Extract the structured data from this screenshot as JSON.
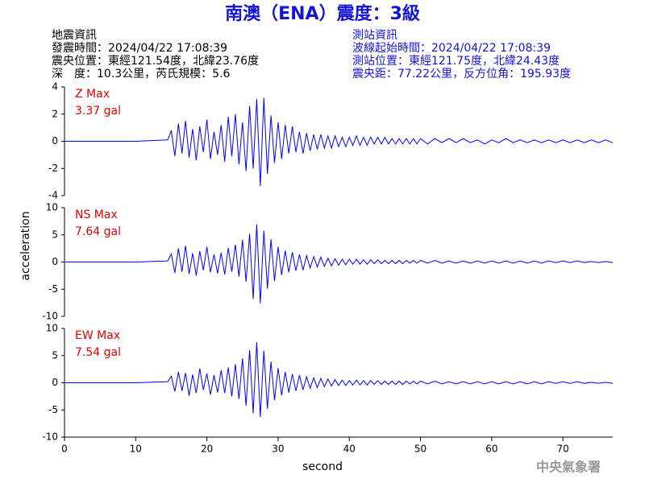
{
  "header": {
    "title": "南澳（ENA）震度：3級",
    "left": [
      "地震資訊",
      "發震時間：2024/04/22 17:08:39",
      "震央位置：東經121.54度，北緯23.76度",
      "深　度：10.3公里，芮氏規模：5.6"
    ],
    "right": [
      "測站資訊",
      "波線起始時間：2024/04/22 17:08:39",
      "測站位置：東經121.75度，北緯24.43度",
      "震央距：77.22公里，反方位角：195.93度"
    ],
    "agency": "中央氣象署"
  },
  "chart_data": [
    {
      "type": "line",
      "annotations": [
        "Z Max",
        "3.37 gal"
      ],
      "annotation_color": "#e00000",
      "color": "#0000ff",
      "xlim": [
        0,
        77
      ],
      "ylim": [
        -4,
        4
      ],
      "yticks": [
        -4,
        -2,
        0,
        2,
        4
      ],
      "x": [
        0,
        5,
        10,
        14.5,
        15,
        15.5,
        16,
        16.5,
        17,
        17.5,
        18,
        18.5,
        19,
        19.5,
        20,
        20.5,
        21,
        21.5,
        22,
        22.5,
        23,
        23.5,
        24,
        24.5,
        25,
        25.5,
        26,
        26.5,
        27,
        27.5,
        28,
        28.5,
        29,
        29.5,
        30,
        30.5,
        31,
        31.5,
        32,
        32.5,
        33,
        33.5,
        34,
        34.5,
        35,
        35.5,
        36,
        36.5,
        37,
        37.5,
        38,
        38.5,
        39,
        39.5,
        40,
        40.5,
        41,
        41.5,
        42,
        42.5,
        43,
        43.5,
        44,
        44.5,
        45,
        45.5,
        46,
        46.5,
        47,
        47.5,
        48,
        48.5,
        49,
        49.5,
        50,
        51,
        52,
        53,
        54,
        55,
        56,
        57,
        58,
        59,
        60,
        61,
        62,
        63,
        64,
        65,
        66,
        67,
        68,
        69,
        70,
        71,
        72,
        73,
        74,
        75,
        76,
        77
      ],
      "values": [
        0,
        0,
        0,
        0.1,
        0.8,
        -1.1,
        1.3,
        -0.9,
        1.5,
        -1.2,
        0.9,
        -1.4,
        1.1,
        -0.8,
        1.6,
        -1.3,
        0.7,
        -1.0,
        1.2,
        -1.5,
        1.8,
        -1.1,
        2.0,
        -1.7,
        1.4,
        -2.2,
        2.6,
        -2.0,
        3.1,
        -3.3,
        3.2,
        -2.4,
        1.9,
        -1.6,
        1.4,
        -1.3,
        1.2,
        -0.9,
        1.1,
        -0.8,
        0.7,
        -0.9,
        0.6,
        -0.7,
        0.5,
        -0.6,
        0.5,
        -0.5,
        0.4,
        -0.5,
        0.4,
        -0.4,
        0.3,
        -0.4,
        0.3,
        -0.3,
        0.4,
        -0.3,
        0.3,
        -0.3,
        0.3,
        -0.2,
        0.3,
        -0.2,
        0.3,
        -0.2,
        0.2,
        -0.2,
        0.2,
        -0.2,
        0.2,
        -0.2,
        0.2,
        -0.2,
        0.2,
        -0.2,
        0.2,
        -0.1,
        0.2,
        -0.1,
        0.2,
        -0.1,
        0.1,
        -0.2,
        0.1,
        -0.1,
        0.2,
        -0.1,
        0.1,
        -0.1,
        0.1,
        -0.1,
        0.1,
        -0.1,
        0.1,
        -0.1,
        0.1,
        -0.1,
        0.1,
        -0.1,
        0.1,
        -0.1
      ]
    },
    {
      "type": "line",
      "annotations": [
        "NS Max",
        "7.64 gal"
      ],
      "annotation_color": "#e00000",
      "color": "#0000ff",
      "ylabel": "acceleration",
      "xlim": [
        0,
        77
      ],
      "ylim": [
        -10,
        10
      ],
      "yticks": [
        -10,
        -5,
        0,
        5,
        10
      ],
      "x": [
        0,
        5,
        10,
        14.5,
        15,
        15.5,
        16,
        16.5,
        17,
        17.5,
        18,
        18.5,
        19,
        19.5,
        20,
        20.5,
        21,
        21.5,
        22,
        22.5,
        23,
        23.5,
        24,
        24.5,
        25,
        25.5,
        26,
        26.5,
        27,
        27.5,
        28,
        28.5,
        29,
        29.5,
        30,
        30.5,
        31,
        31.5,
        32,
        32.5,
        33,
        33.5,
        34,
        34.5,
        35,
        35.5,
        36,
        36.5,
        37,
        37.5,
        38,
        38.5,
        39,
        39.5,
        40,
        40.5,
        41,
        41.5,
        42,
        42.5,
        43,
        43.5,
        44,
        44.5,
        45,
        45.5,
        46,
        46.5,
        47,
        47.5,
        48,
        48.5,
        49,
        49.5,
        50,
        51,
        52,
        53,
        54,
        55,
        56,
        57,
        58,
        59,
        60,
        61,
        62,
        63,
        64,
        65,
        66,
        67,
        68,
        69,
        70,
        71,
        72,
        73,
        74,
        75,
        76,
        77
      ],
      "values": [
        0,
        0,
        0,
        0.2,
        1.5,
        -2.0,
        2.5,
        -1.8,
        3.0,
        -2.2,
        1.6,
        -2.5,
        2.0,
        -1.5,
        2.8,
        -1.9,
        1.4,
        -2.1,
        1.7,
        -2.3,
        2.6,
        -1.8,
        3.2,
        -2.7,
        4.1,
        -3.6,
        5.2,
        -6.8,
        6.9,
        -7.6,
        5.8,
        -4.9,
        4.2,
        -3.5,
        2.8,
        -2.4,
        2.1,
        -1.9,
        1.8,
        -1.6,
        1.4,
        -1.5,
        1.2,
        -1.1,
        1.0,
        -0.9,
        0.9,
        -0.8,
        0.7,
        -0.7,
        0.6,
        -0.6,
        0.5,
        -0.5,
        0.5,
        -0.4,
        0.5,
        -0.4,
        0.4,
        -0.4,
        0.4,
        -0.3,
        0.4,
        -0.3,
        0.3,
        -0.3,
        0.3,
        -0.3,
        0.3,
        -0.3,
        0.3,
        -0.2,
        0.3,
        -0.2,
        0.3,
        -0.2,
        0.3,
        -0.2,
        0.2,
        -0.2,
        0.2,
        -0.2,
        0.2,
        -0.2,
        0.2,
        -0.2,
        0.2,
        -0.2,
        0.2,
        -0.2,
        0.2,
        -0.2,
        0.2,
        -0.1,
        0.2,
        -0.1,
        0.2,
        -0.1,
        0.1,
        -0.1,
        0.1,
        -0.1
      ]
    },
    {
      "type": "line",
      "annotations": [
        "EW Max",
        "7.54 gal"
      ],
      "annotation_color": "#e00000",
      "color": "#0000ff",
      "xlabel": "second",
      "xlim": [
        0,
        77
      ],
      "xticks": [
        0,
        10,
        20,
        30,
        40,
        50,
        60,
        70
      ],
      "ylim": [
        -10,
        10
      ],
      "yticks": [
        -10,
        -5,
        0,
        5,
        10
      ],
      "x": [
        0,
        5,
        10,
        14.5,
        15,
        15.5,
        16,
        16.5,
        17,
        17.5,
        18,
        18.5,
        19,
        19.5,
        20,
        20.5,
        21,
        21.5,
        22,
        22.5,
        23,
        23.5,
        24,
        24.5,
        25,
        25.5,
        26,
        26.5,
        27,
        27.5,
        28,
        28.5,
        29,
        29.5,
        30,
        30.5,
        31,
        31.5,
        32,
        32.5,
        33,
        33.5,
        34,
        34.5,
        35,
        35.5,
        36,
        36.5,
        37,
        37.5,
        38,
        38.5,
        39,
        39.5,
        40,
        40.5,
        41,
        41.5,
        42,
        42.5,
        43,
        43.5,
        44,
        44.5,
        45,
        45.5,
        46,
        46.5,
        47,
        47.5,
        48,
        48.5,
        49,
        49.5,
        50,
        51,
        52,
        53,
        54,
        55,
        56,
        57,
        58,
        59,
        60,
        61,
        62,
        63,
        64,
        65,
        66,
        67,
        68,
        69,
        70,
        71,
        72,
        73,
        74,
        75,
        76,
        77
      ],
      "values": [
        0,
        0,
        0,
        0.2,
        1.2,
        -1.6,
        2.0,
        -1.5,
        1.8,
        -2.4,
        1.5,
        -1.9,
        2.6,
        -1.3,
        1.7,
        -2.2,
        1.4,
        -1.8,
        2.3,
        -1.9,
        2.8,
        -2.5,
        3.4,
        -3.0,
        4.5,
        -4.2,
        6.0,
        -5.6,
        7.5,
        -6.3,
        5.9,
        -4.8,
        3.9,
        -3.2,
        2.7,
        -2.3,
        2.0,
        -1.8,
        1.6,
        -1.5,
        1.4,
        -1.3,
        1.1,
        -1.0,
        0.9,
        -0.9,
        0.8,
        -0.7,
        0.7,
        -0.6,
        0.6,
        -0.5,
        0.5,
        -0.5,
        0.4,
        -0.4,
        0.5,
        -0.4,
        0.4,
        -0.4,
        0.4,
        -0.3,
        0.4,
        -0.3,
        0.3,
        -0.3,
        0.3,
        -0.3,
        0.3,
        -0.3,
        0.3,
        -0.2,
        0.3,
        -0.2,
        0.3,
        -0.2,
        0.3,
        -0.2,
        0.2,
        -0.2,
        0.2,
        -0.2,
        0.2,
        -0.2,
        0.2,
        -0.2,
        0.2,
        -0.2,
        0.2,
        -0.2,
        0.2,
        -0.2,
        0.2,
        -0.1,
        0.2,
        -0.1,
        0.2,
        -0.1,
        0.1,
        -0.1,
        0.1,
        -0.1
      ]
    }
  ]
}
